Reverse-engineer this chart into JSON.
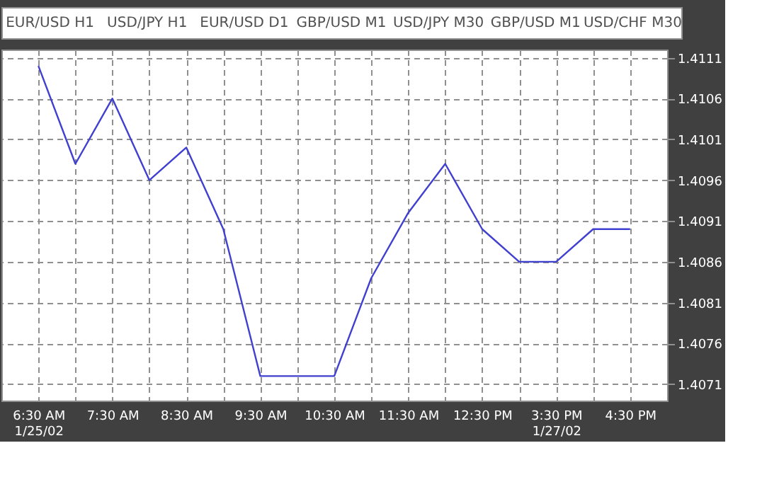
{
  "chart_data": {
    "type": "line",
    "annotations": [
      "EUR/USD H1",
      "USD/JPY H1",
      "EUR/USD D1",
      "GBP/USD M1",
      "USD/JPY M30",
      "GBP/USD M1",
      "USD/CHF M30"
    ],
    "categories": [
      "6:30 AM\n1/25/02",
      null,
      "7:30 AM",
      null,
      "8:30 AM",
      null,
      "9:30 AM",
      null,
      "10:30 AM",
      null,
      "11:30 AM",
      null,
      "12:30 PM",
      null,
      "3:30 PM\n1/27/02",
      null,
      "4:30 PM"
    ],
    "series": [
      {
        "color": "#4040d0",
        "values": [
          1.411,
          1.4098,
          1.4106,
          1.4096,
          1.41,
          1.409,
          1.4072,
          1.4072,
          1.4072,
          1.4084,
          1.4092,
          1.4098,
          1.409,
          1.4086,
          1.4086,
          1.409,
          1.409
        ]
      }
    ],
    "ylim": [
      1.4069,
      1.4112
    ],
    "yticks": [
      1.4071,
      1.4076,
      1.4081,
      1.4086,
      1.4091,
      1.4096,
      1.4101,
      1.4106,
      1.4111
    ],
    "grid": true,
    "marker": "none",
    "line_style": "solid"
  }
}
